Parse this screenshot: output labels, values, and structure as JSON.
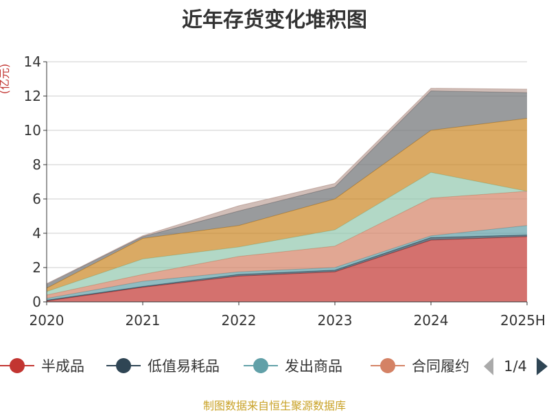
{
  "chart_data": {
    "type": "area",
    "stacked": true,
    "title": "近年存货变化堆积图",
    "ylabel": "(亿元)",
    "categories": [
      "2020",
      "2021",
      "2022",
      "2023",
      "2024",
      "2025H"
    ],
    "ylim": [
      0,
      14
    ],
    "yticks": [
      "0",
      "2",
      "4",
      "6",
      "8",
      "10",
      "12",
      "14"
    ],
    "grid": true,
    "legend_position": "bottom",
    "legend_page": "1/4",
    "series": [
      {
        "name": "半成品",
        "color": "#c23531",
        "values": [
          0.05,
          0.85,
          1.5,
          1.75,
          3.6,
          3.8
        ]
      },
      {
        "name": "低值易耗品",
        "color": "#2f4554",
        "values": [
          0.05,
          0.05,
          0.1,
          0.1,
          0.15,
          0.1
        ]
      },
      {
        "name": "发出商品",
        "color": "#61a0a8",
        "values": [
          0.1,
          0.3,
          0.15,
          0.15,
          0.1,
          0.55
        ]
      },
      {
        "name": "合同履约成本",
        "color": "#d48265",
        "values": [
          0.2,
          0.4,
          0.9,
          1.25,
          2.2,
          2.0
        ]
      },
      {
        "name": "",
        "color": "#91c7ae",
        "values": [
          0.2,
          0.9,
          0.55,
          0.95,
          1.5,
          0.0
        ]
      },
      {
        "name": "",
        "color": "#ca8622",
        "values": [
          0.2,
          1.2,
          1.25,
          1.8,
          2.45,
          4.25
        ]
      },
      {
        "name": "",
        "color": "#6e7074",
        "values": [
          0.25,
          0.1,
          0.85,
          0.7,
          2.3,
          1.5
        ]
      },
      {
        "name": "",
        "color": "#bda29a",
        "values": [
          0.0,
          0.05,
          0.3,
          0.2,
          0.15,
          0.2
        ]
      }
    ]
  },
  "legend": {
    "items": [
      {
        "label": "半成品",
        "color": "#c23531"
      },
      {
        "label": "低值易耗品",
        "color": "#2f4554"
      },
      {
        "label": "发出商品",
        "color": "#61a0a8"
      },
      {
        "label": "合同履约",
        "color": "#d48265"
      }
    ],
    "page": "1/4"
  },
  "footer": {
    "source": "制图数据来自恒生聚源数据库"
  }
}
